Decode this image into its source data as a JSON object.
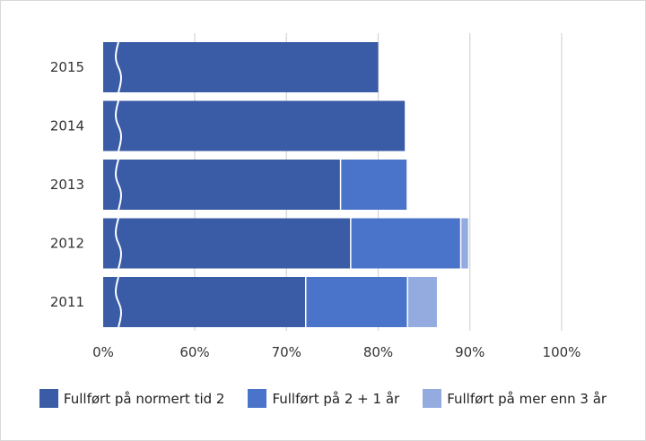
{
  "chart_data": {
    "type": "bar",
    "orientation": "horizontal",
    "stacked": true,
    "axis_break": "after 0%",
    "categories": [
      "2015",
      "2014",
      "2013",
      "2012",
      "2011"
    ],
    "x_ticks": [
      {
        "value": 0,
        "label": "0%"
      },
      {
        "value": 60,
        "label": "60%"
      },
      {
        "value": 70,
        "label": "70%"
      },
      {
        "value": 80,
        "label": "80%"
      },
      {
        "value": 90,
        "label": "90%"
      },
      {
        "value": 100,
        "label": "100%"
      }
    ],
    "xlim": [
      55,
      100
    ],
    "grid": true,
    "legend_position": "bottom",
    "series": [
      {
        "name": "Fullført på normert tid 2",
        "color": "#3a5ba6",
        "values": [
          80.0,
          82.9,
          75.9,
          77.0,
          72.1
        ]
      },
      {
        "name": "Fullført på 2 + 1 år",
        "color": "#4a74c9",
        "values": [
          0,
          0,
          7.2,
          12.0,
          11.1
        ]
      },
      {
        "name": "Fullført på mer enn 3 år",
        "color": "#94abe0",
        "values": [
          0,
          0,
          0,
          0.8,
          3.2
        ]
      }
    ]
  }
}
